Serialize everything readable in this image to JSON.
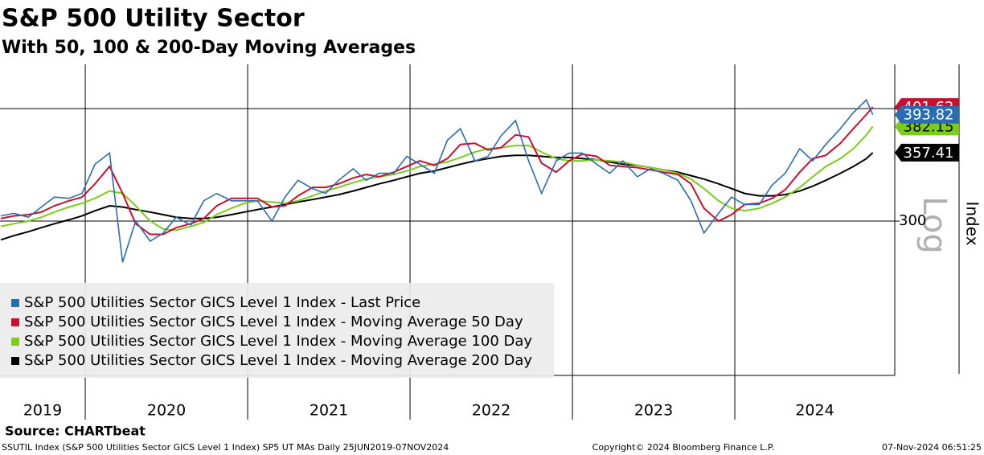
{
  "chart_data": {
    "type": "line",
    "title": "S&P 500 Utility Sector",
    "subtitle": "With 50, 100 & 200-Day Moving Averages",
    "y_label": "Index",
    "scale_label": "Log",
    "log": true,
    "grid": true,
    "legend": "bottom-left",
    "source": "Source: CHARTbeat",
    "footnote": "SSUTIL Index (S&P 500 Utilities Sector GICS Level 1 Index) SP5 UT MAs  Daily 25JUN2019-07NOV2024",
    "copyright": "Copyright© 2024 Bloomberg Finance L.P.",
    "timestamp": "07-Nov-2024 06:51:25",
    "xlim": [
      2019.475,
      2024.985
    ],
    "xticks": [
      {
        "value": 2019,
        "label": "2019"
      },
      {
        "value": 2020,
        "label": "2020"
      },
      {
        "value": 2021,
        "label": "2021"
      },
      {
        "value": 2022,
        "label": "2022"
      },
      {
        "value": 2023,
        "label": "2023"
      },
      {
        "value": 2024,
        "label": "2024"
      }
    ],
    "ylim": [
      203,
      448
    ],
    "yticks": [
      300,
      400
    ],
    "x": [
      2019.48,
      2019.56,
      2019.65,
      2019.73,
      2019.81,
      2019.9,
      2019.98,
      2020.06,
      2020.15,
      2020.23,
      2020.31,
      2020.4,
      2020.48,
      2020.56,
      2020.65,
      2020.73,
      2020.81,
      2020.9,
      2020.98,
      2021.06,
      2021.15,
      2021.23,
      2021.31,
      2021.4,
      2021.48,
      2021.56,
      2021.65,
      2021.73,
      2021.81,
      2021.9,
      2021.98,
      2022.06,
      2022.15,
      2022.23,
      2022.31,
      2022.4,
      2022.48,
      2022.56,
      2022.65,
      2022.73,
      2022.81,
      2022.9,
      2022.98,
      2023.06,
      2023.15,
      2023.23,
      2023.31,
      2023.4,
      2023.48,
      2023.56,
      2023.65,
      2023.73,
      2023.81,
      2023.9,
      2023.98,
      2024.06,
      2024.15,
      2024.23,
      2024.31,
      2024.4,
      2024.48,
      2024.56,
      2024.65,
      2024.73,
      2024.81,
      2024.85
    ],
    "series": [
      {
        "name": "S&P 500 Utilities Sector GICS Level 1 Index - Last Price",
        "color": "#2b6cb0",
        "values": [
          304,
          306,
          303,
          311,
          319,
          318,
          322,
          347,
          357,
          270,
          300,
          285,
          291,
          303,
          297,
          316,
          322,
          316,
          316,
          316,
          300,
          319,
          333,
          326,
          322,
          333,
          343,
          333,
          339,
          339,
          354,
          347,
          339,
          369,
          380,
          350,
          354,
          373,
          388,
          350,
          322,
          350,
          357,
          357,
          347,
          339,
          350,
          336,
          343,
          339,
          333,
          316,
          291,
          306,
          319,
          313,
          313,
          329,
          339,
          361,
          350,
          365,
          380,
          396,
          409,
          393.82
        ]
      },
      {
        "name": "S&P 500 Utilities Sector GICS Level 1 Index - Moving Average 50 Day",
        "color": "#c8102e",
        "values": [
          302,
          304,
          305,
          307,
          312,
          316,
          319,
          330,
          345,
          322,
          298,
          290,
          290,
          295,
          298,
          302,
          312,
          318,
          318,
          318,
          311,
          312,
          320,
          327,
          327,
          330,
          335,
          338,
          336,
          340,
          345,
          350,
          346,
          352,
          365,
          366,
          360,
          362,
          374,
          372,
          348,
          340,
          350,
          356,
          354,
          346,
          345,
          344,
          342,
          340,
          338,
          330,
          310,
          300,
          305,
          313,
          314,
          318,
          325,
          340,
          352,
          355,
          366,
          380,
          394,
          401.62
        ]
      },
      {
        "name": "S&P 500 Utilities Sector GICS Level 1 Index - Moving Average 100 Day",
        "color": "#7ccc1c",
        "values": [
          296,
          298,
          300,
          303,
          307,
          311,
          314,
          318,
          324,
          322,
          312,
          300,
          294,
          293,
          296,
          299,
          305,
          310,
          314,
          316,
          315,
          314,
          316,
          320,
          324,
          327,
          331,
          334,
          336,
          338,
          341,
          345,
          347,
          349,
          353,
          358,
          361,
          362,
          364,
          364,
          358,
          352,
          350,
          350,
          351,
          350,
          349,
          346,
          344,
          342,
          339,
          334,
          326,
          316,
          310,
          308,
          310,
          314,
          319,
          327,
          336,
          345,
          352,
          361,
          374,
          382.15
        ]
      },
      {
        "name": "S&P 500 Utilities Sector GICS Level 1 Index - Moving Average 200 Day",
        "color": "#000000",
        "values": [
          286,
          289,
          292,
          295,
          298,
          301,
          304,
          308,
          312,
          311,
          309,
          307,
          305,
          303,
          302,
          302,
          303,
          305,
          307,
          309,
          311,
          313,
          315,
          317,
          319,
          321,
          324,
          327,
          330,
          333,
          336,
          339,
          341,
          344,
          347,
          350,
          352,
          354,
          355,
          355,
          354,
          353,
          353,
          352,
          351,
          349,
          347,
          346,
          344,
          342,
          340,
          337,
          334,
          330,
          326,
          322,
          320,
          320,
          321,
          324,
          328,
          333,
          339,
          345,
          352,
          357.41
        ]
      }
    ]
  }
}
